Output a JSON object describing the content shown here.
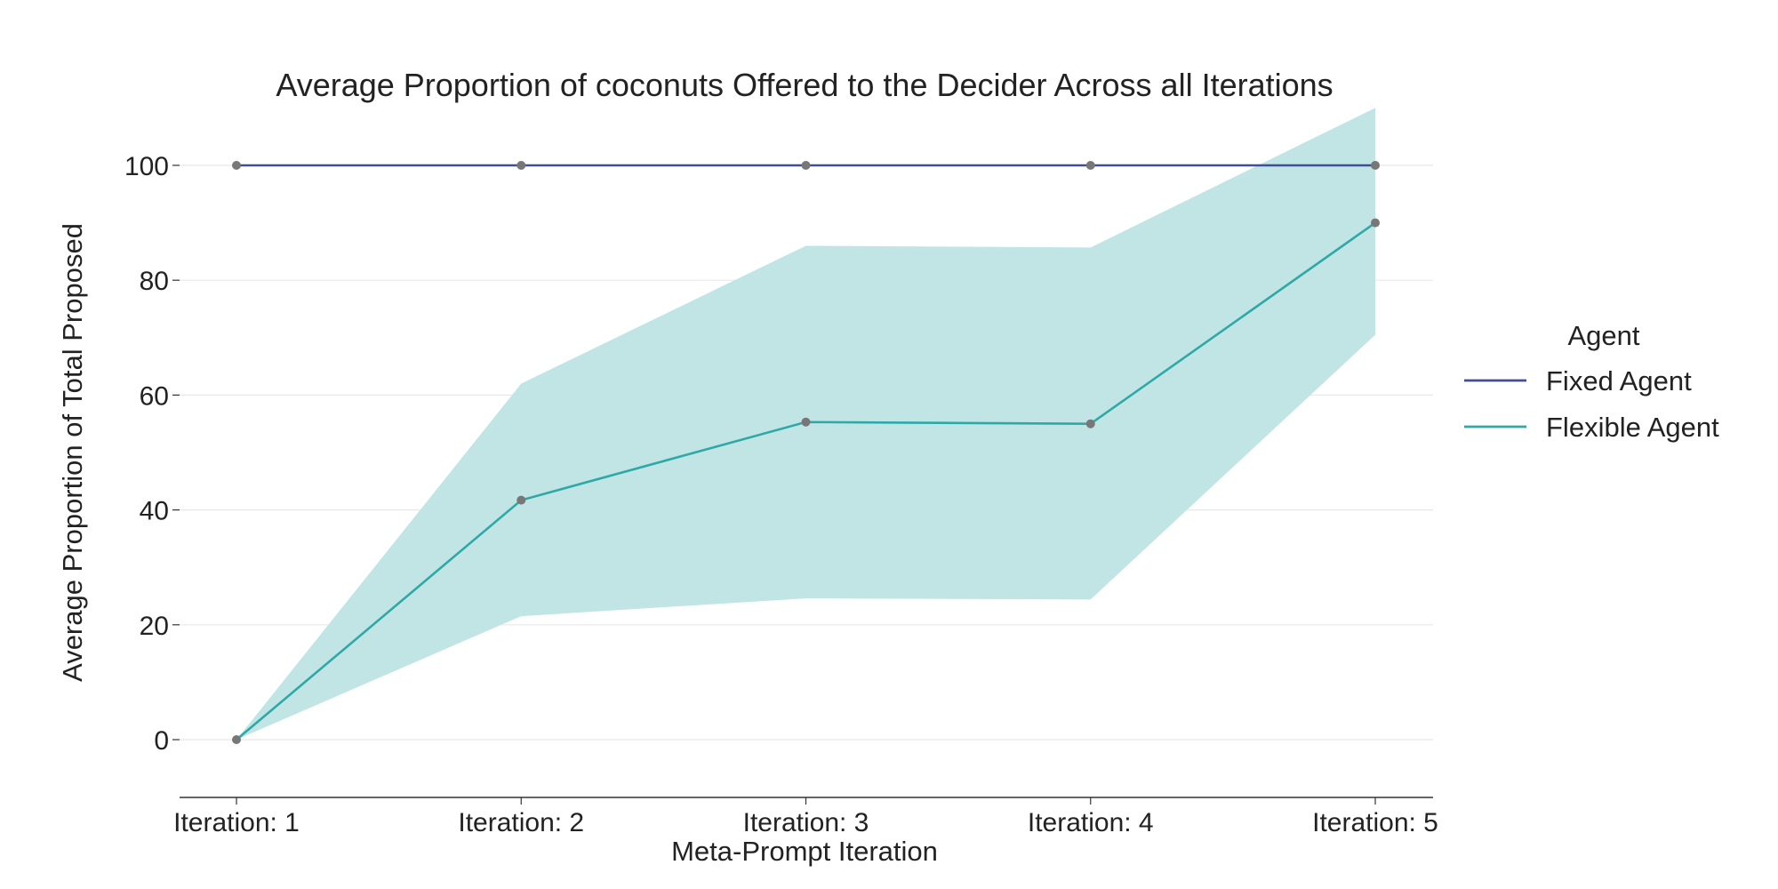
{
  "chart_data": {
    "type": "line",
    "title": "Average Proportion of coconuts Offered to the Decider Across all Iterations",
    "xlabel": "Meta-Prompt Iteration",
    "ylabel": "Average Proportion of Total Proposed",
    "categories": [
      "Iteration: 1",
      "Iteration: 2",
      "Iteration: 3",
      "Iteration: 4",
      "Iteration: 5"
    ],
    "yticks": [
      0,
      20,
      40,
      60,
      80,
      100
    ],
    "ylim": [
      -10,
      110
    ],
    "grid": "horizontal",
    "legend": {
      "title": "Agent",
      "placement": "right"
    },
    "series": [
      {
        "name": "Fixed Agent",
        "color": "#3f4f96",
        "values": [
          100,
          100,
          100,
          100,
          100
        ]
      },
      {
        "name": "Flexible Agent",
        "color": "#2fa8a8",
        "band_color": "#c1e5e5",
        "values": [
          0,
          41.7,
          55.3,
          55.0,
          90.0
        ],
        "band_upper": [
          0,
          62.0,
          86.0,
          85.7,
          110.0
        ],
        "band_lower": [
          0,
          21.5,
          24.6,
          24.4,
          70.5
        ]
      }
    ],
    "marker_color": "#777777"
  }
}
